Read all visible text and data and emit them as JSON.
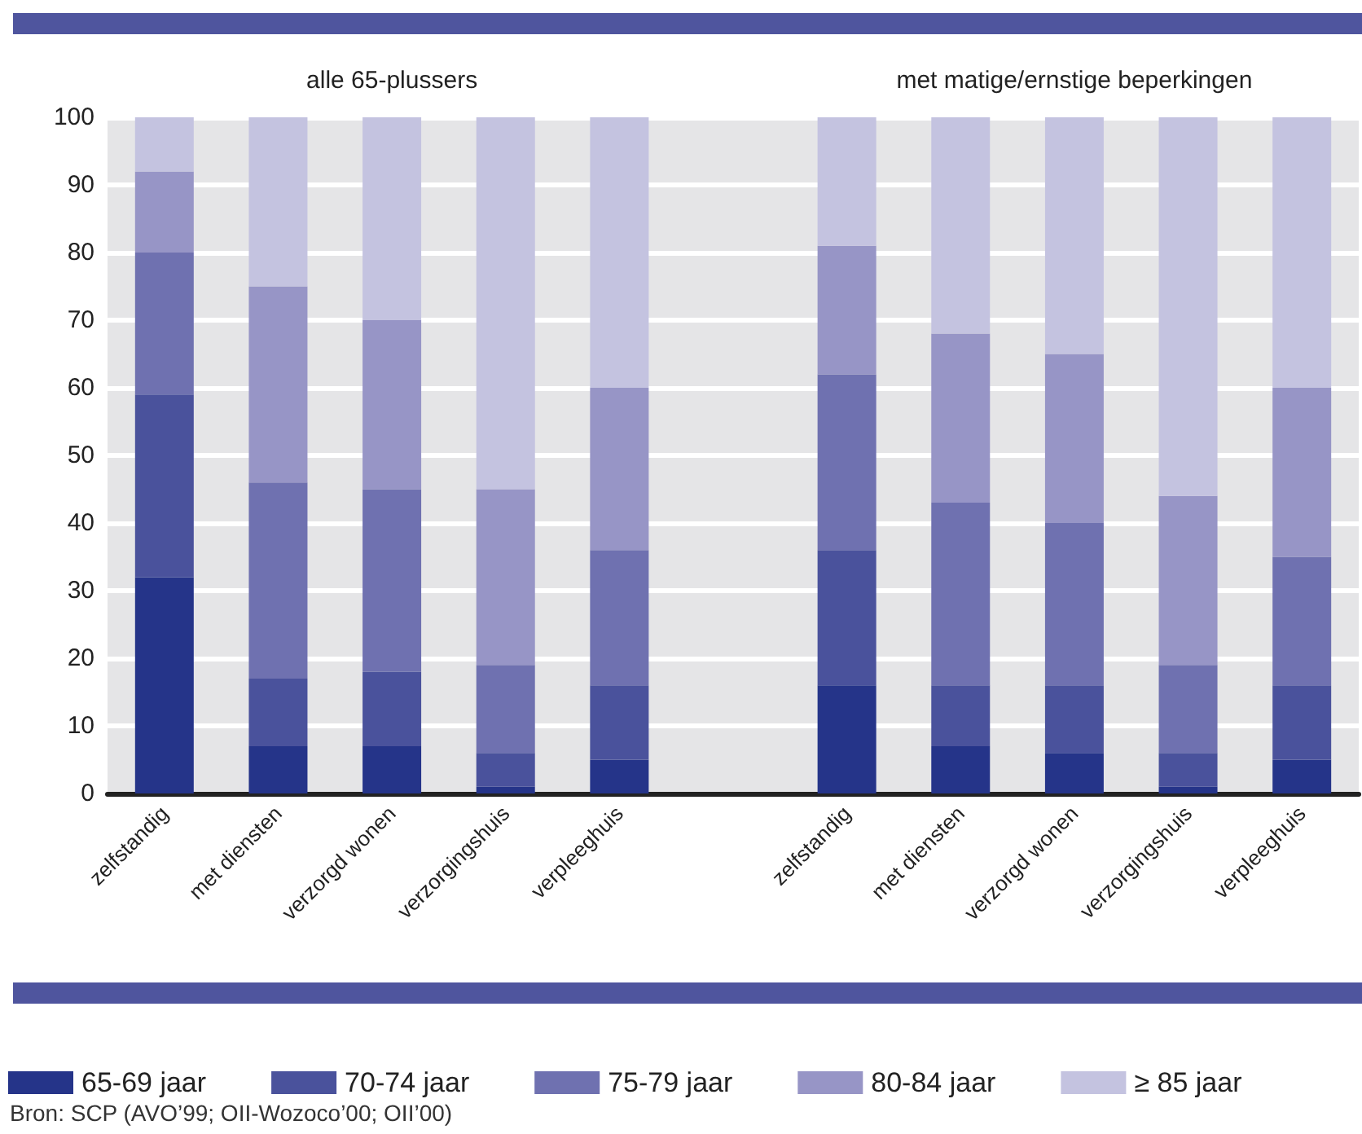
{
  "chart_data": {
    "type": "bar",
    "stacked": true,
    "categories": [
      "zelfstandig",
      "met diensten",
      "verzorgd wonen",
      "verzorgingshuis",
      "verpleeghuis",
      null,
      "zelfstandig",
      "met diensten",
      "verzorgd wonen",
      "verzorgingshuis",
      "verpleeghuis"
    ],
    "series": [
      {
        "name": "65-69 jaar",
        "color": "#253489",
        "values": [
          32,
          7,
          7,
          1,
          5,
          null,
          16,
          7,
          6,
          1,
          5
        ]
      },
      {
        "name": "70-74 jaar",
        "color": "#4a529c",
        "values": [
          27,
          10,
          11,
          5,
          11,
          null,
          20,
          9,
          10,
          5,
          11
        ]
      },
      {
        "name": "75-79 jaar",
        "color": "#6f71b0",
        "values": [
          21,
          29,
          27,
          13,
          20,
          null,
          26,
          27,
          24,
          13,
          19
        ]
      },
      {
        "name": "80-84 jaar",
        "color": "#9795c6",
        "values": [
          12,
          29,
          25,
          26,
          24,
          null,
          19,
          25,
          25,
          25,
          25
        ]
      },
      {
        "name": "≥ 85 jaar",
        "color": "#c4c3e0",
        "values": [
          8,
          25,
          30,
          55,
          40,
          null,
          19,
          32,
          35,
          56,
          40
        ]
      }
    ],
    "ylim": [
      0,
      100
    ],
    "yticks": [
      0,
      10,
      20,
      30,
      40,
      50,
      60,
      70,
      80,
      90,
      100
    ],
    "grid": "y",
    "legend": "bottom",
    "annotations": [
      "alle 65-plussers",
      "met matige/ernstige beperkingen",
      "Bron: SCP (AVO’99; OII-Wozoco’00; OII’00)"
    ]
  }
}
